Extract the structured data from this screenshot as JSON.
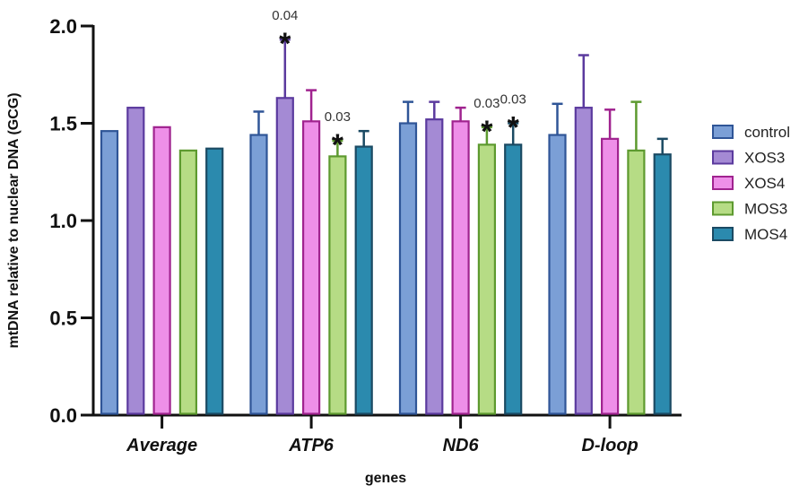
{
  "chart_data": {
    "type": "bar",
    "title": "",
    "xlabel": "genes",
    "ylabel": "mtDNA relative to nuclear DNA (GCG)",
    "ylim": [
      0,
      2.0
    ],
    "yticks": [
      0.0,
      0.5,
      1.0,
      1.5,
      2.0
    ],
    "ytick_labels": [
      "0.0",
      "0.5",
      "1.0",
      "1.5",
      "2.0"
    ],
    "categories": [
      "Average",
      "ATP6",
      "ND6",
      "D-loop"
    ],
    "legend_position": "right",
    "grid": false,
    "series": [
      {
        "name": "control",
        "fill": "#7b9fd6",
        "stroke": "#2f5597",
        "values": [
          1.46,
          1.44,
          1.5,
          1.44
        ],
        "errors": [
          null,
          1.56,
          1.61,
          1.6
        ]
      },
      {
        "name": "XOS3",
        "fill": "#a48ad4",
        "stroke": "#5b3a9e",
        "values": [
          1.58,
          1.63,
          1.52,
          1.58
        ],
        "errors": [
          null,
          1.93,
          1.61,
          1.85
        ]
      },
      {
        "name": "XOS4",
        "fill": "#ee8fe8",
        "stroke": "#a0238f",
        "values": [
          1.48,
          1.51,
          1.51,
          1.42
        ],
        "errors": [
          null,
          1.67,
          1.58,
          1.57
        ]
      },
      {
        "name": "MOS3",
        "fill": "#b6dc85",
        "stroke": "#5d9a2f",
        "values": [
          1.36,
          1.33,
          1.39,
          1.36
        ],
        "errors": [
          null,
          1.41,
          1.48,
          1.61
        ]
      },
      {
        "name": "MOS4",
        "fill": "#2b8aae",
        "stroke": "#1b4a63",
        "values": [
          1.37,
          1.38,
          1.39,
          1.34
        ],
        "errors": [
          null,
          1.46,
          1.5,
          1.42
        ]
      }
    ],
    "annotations": [
      {
        "category": "ATP6",
        "series": "XOS3",
        "p_value": "0.04",
        "marker": "*"
      },
      {
        "category": "ATP6",
        "series": "MOS3",
        "p_value": "0.03",
        "marker": "*"
      },
      {
        "category": "ND6",
        "series": "MOS3",
        "p_value": "0.03",
        "marker": "*"
      },
      {
        "category": "ND6",
        "series": "MOS4",
        "p_value": "0.03",
        "marker": "*"
      }
    ]
  }
}
